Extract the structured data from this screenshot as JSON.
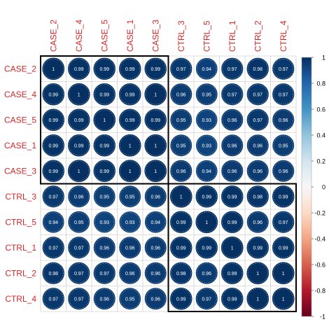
{
  "chart_data": {
    "type": "heatmap",
    "subtype": "correlation-circles",
    "rows": [
      "CASE_2",
      "CASE_4",
      "CASE_5",
      "CASE_1",
      "CASE_3",
      "CTRL_3",
      "CTRL_5",
      "CTRL_1",
      "CTRL_2",
      "CTRL_4"
    ],
    "columns": [
      "CASE_2",
      "CASE_4",
      "CASE_5",
      "CASE_1",
      "CASE_3",
      "CTRL_3",
      "CTRL_5",
      "CTRL_1",
      "CTRL_2",
      "CTRL_4"
    ],
    "labels": [
      [
        "1",
        "0.99",
        "0.99",
        "0.99",
        "0.99",
        "0.97",
        "0.94",
        "0.97",
        "0.98",
        "0.97"
      ],
      [
        "0.99",
        "1",
        "0.99",
        "0.99",
        "1",
        "0.96",
        "0.95",
        "0.97",
        "0.97",
        "0.97"
      ],
      [
        "0.99",
        "0.99",
        "1",
        "0.99",
        "0.99",
        "0.95",
        "0.93",
        "0.96",
        "0.97",
        "0.96"
      ],
      [
        "0.99",
        "0.99",
        "0.99",
        "1",
        "1",
        "0.95",
        "0.93",
        "0.96",
        "0.96",
        "0.95"
      ],
      [
        "0.99",
        "1",
        "0.99",
        "1",
        "1",
        "0.96",
        "0.94",
        "0.96",
        "0.96",
        "0.96"
      ],
      [
        "0.97",
        "0.96",
        "0.95",
        "0.95",
        "0.96",
        "1",
        "0.99",
        "0.99",
        "0.98",
        "0.99"
      ],
      [
        "0.94",
        "0.95",
        "0.93",
        "0.93",
        "0.94",
        "0.99",
        "1",
        "0.99",
        "0.96",
        "0.97"
      ],
      [
        "0.97",
        "0.97",
        "0.96",
        "0.96",
        "0.96",
        "0.99",
        "0.99",
        "1",
        "0.99",
        "0.99"
      ],
      [
        "0.98",
        "0.97",
        "0.97",
        "0.96",
        "0.96",
        "0.98",
        "0.96",
        "0.99",
        "1",
        "1"
      ],
      [
        "0.97",
        "0.97",
        "0.96",
        "0.95",
        "0.96",
        "0.99",
        "0.97",
        "0.99",
        "1",
        "1"
      ]
    ],
    "clusters": [
      {
        "from": 0,
        "to": 4
      },
      {
        "from": 5,
        "to": 9
      }
    ],
    "legend": {
      "placement": "right",
      "min": -1,
      "max": 1,
      "ticks": [
        "1",
        "0.8",
        "0.6",
        "0.4",
        "0.2",
        "0",
        "-0.2",
        "-0.4",
        "-0.6",
        "-0.8",
        "-1"
      ]
    },
    "colors": {
      "label": "#d62728",
      "positive_strong": "#053061",
      "neutral": "#f7f7f7",
      "negative_strong": "#67001f",
      "grid": "#bfbfbf",
      "cluster_box": "#000000",
      "value_text": "#ffffff"
    }
  }
}
